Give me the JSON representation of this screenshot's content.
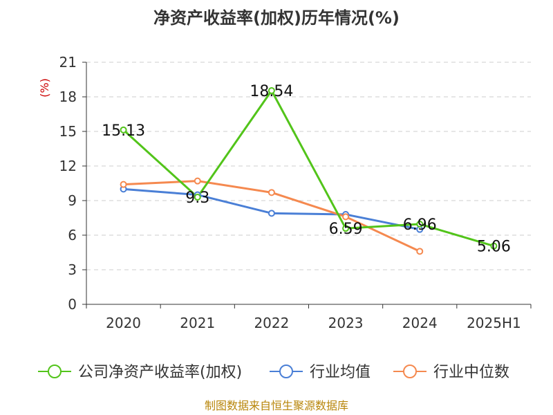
{
  "title": "净资产收益率(加权)历年情况(%)",
  "source": "制图数据来自恒生聚源数据库",
  "colors": {
    "company": "#52c41a",
    "industry_avg": "#4a7fd6",
    "industry_median": "#f5894f"
  },
  "chart_data": {
    "type": "line",
    "title": "净资产收益率(加权)历年情况(%)",
    "ylabel": "(%)",
    "xlabel": "",
    "categories": [
      "2020",
      "2021",
      "2022",
      "2023",
      "2024",
      "2025H1"
    ],
    "ylim": [
      0,
      21
    ],
    "yticks": [
      0,
      3,
      6,
      9,
      12,
      15,
      18,
      21
    ],
    "grid": true,
    "legend_position": "bottom",
    "series": [
      {
        "name": "公司净资产收益率(加权)",
        "color": "#52c41a",
        "values": [
          15.13,
          9.3,
          18.54,
          6.59,
          6.96,
          5.06
        ],
        "labels": [
          "15.13",
          "9.3",
          "18.54",
          "6.59",
          "6.96",
          "5.06"
        ]
      },
      {
        "name": "行业均值",
        "color": "#4a7fd6",
        "values": [
          10.0,
          9.5,
          7.9,
          7.8,
          6.5,
          null
        ]
      },
      {
        "name": "行业中位数",
        "color": "#f5894f",
        "values": [
          10.4,
          10.7,
          9.7,
          7.6,
          4.6,
          null
        ]
      }
    ]
  }
}
